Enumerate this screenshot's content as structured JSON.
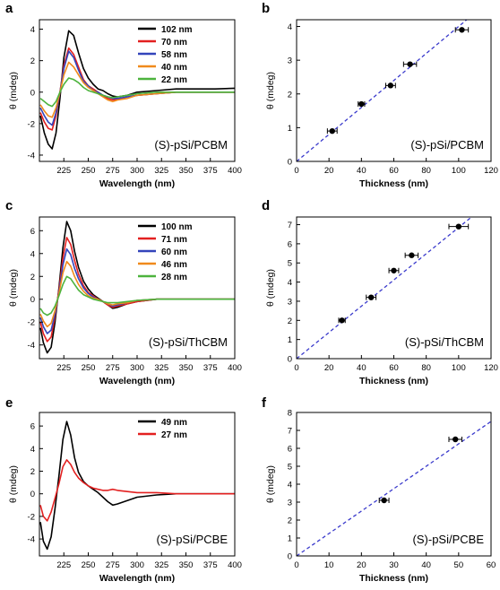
{
  "chart_data": [
    {
      "panel": "a",
      "type": "line",
      "annotation": "(S)-pSi/PCBM",
      "xlabel": "Wavelength (nm)",
      "ylabel": "θ (mdeg)",
      "xlim": [
        200,
        400
      ],
      "ylim": [
        -4.4,
        4.6
      ],
      "xticks": [
        225,
        250,
        275,
        300,
        325,
        350,
        375,
        400
      ],
      "yticks": [
        -4,
        -2,
        0,
        2,
        4
      ],
      "legend": "top-right",
      "series": [
        {
          "name": "102 nm",
          "color": "#000000",
          "x": [
            201,
            205,
            209,
            213,
            217,
            221,
            225,
            230,
            235,
            240,
            245,
            250,
            255,
            260,
            265,
            270,
            275,
            280,
            290,
            300,
            320,
            340,
            360,
            380,
            400
          ],
          "y": [
            -1.5,
            -2.6,
            -3.3,
            -3.6,
            -2.6,
            -0.4,
            2.2,
            3.9,
            3.6,
            2.5,
            1.5,
            0.9,
            0.5,
            0.2,
            0.1,
            -0.1,
            -0.25,
            -0.3,
            -0.2,
            0.0,
            0.1,
            0.2,
            0.2,
            0.2,
            0.25
          ]
        },
        {
          "name": "70 nm",
          "color": "#e32020",
          "x": [
            201,
            205,
            209,
            213,
            217,
            221,
            225,
            230,
            235,
            240,
            245,
            250,
            255,
            260,
            265,
            270,
            275,
            280,
            290,
            300,
            320,
            340,
            360,
            380,
            400
          ],
          "y": [
            -1.3,
            -1.9,
            -2.3,
            -2.4,
            -1.5,
            0.0,
            1.7,
            2.8,
            2.4,
            1.6,
            0.8,
            0.4,
            0.2,
            0.0,
            -0.2,
            -0.4,
            -0.5,
            -0.45,
            -0.3,
            -0.2,
            -0.1,
            0.0,
            0.0,
            0.0,
            0.0
          ]
        },
        {
          "name": "58 nm",
          "color": "#3344bb",
          "x": [
            201,
            205,
            209,
            213,
            217,
            221,
            225,
            230,
            235,
            240,
            245,
            250,
            255,
            260,
            265,
            270,
            275,
            280,
            290,
            300,
            320,
            340,
            360,
            380,
            400
          ],
          "y": [
            -1.0,
            -1.5,
            -1.9,
            -2.1,
            -1.3,
            0.0,
            1.5,
            2.6,
            2.2,
            1.4,
            0.7,
            0.4,
            0.1,
            0.0,
            -0.2,
            -0.3,
            -0.4,
            -0.4,
            -0.3,
            -0.2,
            -0.1,
            0.0,
            0.0,
            0.0,
            0.0
          ]
        },
        {
          "name": "40 nm",
          "color": "#f08a1c",
          "x": [
            201,
            205,
            209,
            213,
            217,
            221,
            225,
            230,
            235,
            240,
            245,
            250,
            255,
            260,
            265,
            270,
            275,
            280,
            290,
            300,
            320,
            340,
            360,
            380,
            400
          ],
          "y": [
            -0.8,
            -1.2,
            -1.5,
            -1.6,
            -1.0,
            0.0,
            1.1,
            1.9,
            1.6,
            1.1,
            0.6,
            0.3,
            0.1,
            -0.1,
            -0.3,
            -0.5,
            -0.6,
            -0.5,
            -0.4,
            -0.2,
            -0.1,
            0.0,
            0.0,
            0.0,
            0.0
          ]
        },
        {
          "name": "22 nm",
          "color": "#4db33d",
          "x": [
            201,
            205,
            209,
            213,
            217,
            221,
            225,
            230,
            235,
            240,
            245,
            250,
            255,
            260,
            265,
            270,
            275,
            280,
            290,
            300,
            320,
            340,
            360,
            380,
            400
          ],
          "y": [
            -0.4,
            -0.6,
            -0.8,
            -0.9,
            -0.6,
            0.0,
            0.5,
            0.9,
            0.8,
            0.6,
            0.3,
            0.1,
            0.0,
            -0.1,
            -0.2,
            -0.3,
            -0.35,
            -0.3,
            -0.2,
            -0.1,
            0.0,
            0.0,
            0.0,
            0.0,
            0.0
          ]
        }
      ]
    },
    {
      "panel": "b",
      "type": "scatter",
      "annotation": "(S)-pSi/PCBM",
      "xlabel": "Thickness (nm)",
      "ylabel": "θ (mdeg)",
      "xlim": [
        0,
        120
      ],
      "ylim": [
        0,
        4.2
      ],
      "xticks": [
        0,
        20,
        40,
        60,
        80,
        100,
        120
      ],
      "yticks": [
        0,
        1,
        2,
        3,
        4
      ],
      "points": [
        {
          "x": 22,
          "y": 0.9,
          "xerr": 3
        },
        {
          "x": 40,
          "y": 1.7,
          "xerr": 2
        },
        {
          "x": 58,
          "y": 2.25,
          "xerr": 3
        },
        {
          "x": 70,
          "y": 2.88,
          "xerr": 4
        },
        {
          "x": 102,
          "y": 3.9,
          "xerr": 4
        }
      ],
      "fit_line": {
        "x": [
          0,
          105
        ],
        "y": [
          0,
          4.2
        ]
      }
    },
    {
      "panel": "c",
      "type": "line",
      "annotation": "(S)-pSi/ThCBM",
      "xlabel": "Wavelength (nm)",
      "ylabel": "θ (mdeg)",
      "xlim": [
        200,
        400
      ],
      "ylim": [
        -5.2,
        7.2
      ],
      "xticks": [
        225,
        250,
        275,
        300,
        325,
        350,
        375,
        400
      ],
      "yticks": [
        -4,
        -2,
        0,
        2,
        4,
        6
      ],
      "legend": "top-right",
      "series": [
        {
          "name": "100 nm",
          "color": "#000000",
          "x": [
            201,
            204,
            208,
            212,
            216,
            220,
            224,
            228,
            232,
            236,
            240,
            245,
            250,
            255,
            260,
            265,
            270,
            275,
            280,
            290,
            300,
            320,
            340,
            360,
            380,
            400
          ],
          "y": [
            -2.5,
            -3.8,
            -4.7,
            -4.2,
            -2.0,
            1.0,
            4.5,
            6.8,
            6.0,
            4.2,
            2.8,
            1.6,
            0.9,
            0.4,
            0.1,
            -0.2,
            -0.5,
            -0.8,
            -0.7,
            -0.4,
            -0.2,
            0.0,
            0.0,
            0.0,
            0.0,
            0.0
          ]
        },
        {
          "name": "71 nm",
          "color": "#e32020",
          "x": [
            201,
            204,
            208,
            212,
            216,
            220,
            224,
            228,
            232,
            236,
            240,
            245,
            250,
            255,
            260,
            265,
            270,
            275,
            280,
            290,
            300,
            320,
            340,
            360,
            380,
            400
          ],
          "y": [
            -2.0,
            -3.0,
            -3.7,
            -3.3,
            -1.5,
            0.8,
            3.6,
            5.4,
            4.8,
            3.4,
            2.2,
            1.2,
            0.6,
            0.3,
            0.0,
            -0.2,
            -0.5,
            -0.7,
            -0.6,
            -0.4,
            -0.2,
            0.0,
            0.0,
            0.0,
            0.0,
            0.0
          ]
        },
        {
          "name": "60 nm",
          "color": "#3344bb",
          "x": [
            201,
            204,
            208,
            212,
            216,
            220,
            224,
            228,
            232,
            236,
            240,
            245,
            250,
            255,
            260,
            265,
            270,
            275,
            280,
            290,
            300,
            320,
            340,
            360,
            380,
            400
          ],
          "y": [
            -1.6,
            -2.4,
            -3.0,
            -2.7,
            -1.3,
            0.6,
            3.0,
            4.4,
            3.9,
            2.7,
            1.8,
            1.0,
            0.5,
            0.2,
            0.0,
            -0.2,
            -0.4,
            -0.6,
            -0.5,
            -0.3,
            -0.1,
            0.0,
            0.0,
            0.0,
            0.0,
            0.0
          ]
        },
        {
          "name": "46 nm",
          "color": "#f08a1c",
          "x": [
            201,
            204,
            208,
            212,
            216,
            220,
            224,
            228,
            232,
            236,
            240,
            245,
            250,
            255,
            260,
            265,
            270,
            275,
            280,
            290,
            300,
            320,
            340,
            360,
            380,
            400
          ],
          "y": [
            -1.3,
            -1.9,
            -2.4,
            -2.1,
            -1.0,
            0.5,
            2.3,
            3.3,
            2.9,
            2.0,
            1.3,
            0.7,
            0.3,
            0.1,
            0.0,
            -0.2,
            -0.4,
            -0.5,
            -0.4,
            -0.3,
            -0.1,
            0.0,
            0.0,
            0.0,
            0.0,
            0.0
          ]
        },
        {
          "name": "28 nm",
          "color": "#4db33d",
          "x": [
            201,
            204,
            208,
            212,
            216,
            220,
            224,
            228,
            232,
            236,
            240,
            245,
            250,
            255,
            260,
            265,
            270,
            275,
            280,
            290,
            300,
            320,
            340,
            360,
            380,
            400
          ],
          "y": [
            -0.8,
            -1.2,
            -1.4,
            -1.2,
            -0.6,
            0.3,
            1.3,
            2.0,
            1.8,
            1.3,
            0.8,
            0.4,
            0.2,
            0.0,
            -0.1,
            -0.2,
            -0.3,
            -0.3,
            -0.3,
            -0.2,
            -0.1,
            0.0,
            0.0,
            0.0,
            0.0,
            0.0
          ]
        }
      ]
    },
    {
      "panel": "d",
      "type": "scatter",
      "annotation": "(S)-pSi/ThCBM",
      "xlabel": "Thickness (nm)",
      "ylabel": "θ (mdeg)",
      "xlim": [
        0,
        120
      ],
      "ylim": [
        0,
        7.4
      ],
      "xticks": [
        0,
        20,
        40,
        60,
        80,
        100,
        120
      ],
      "yticks": [
        0,
        1,
        2,
        3,
        4,
        5,
        6,
        7
      ],
      "points": [
        {
          "x": 28,
          "y": 2.0,
          "xerr": 2
        },
        {
          "x": 46,
          "y": 3.2,
          "xerr": 3
        },
        {
          "x": 60,
          "y": 4.6,
          "xerr": 3
        },
        {
          "x": 71,
          "y": 5.4,
          "xerr": 4
        },
        {
          "x": 100,
          "y": 6.9,
          "xerr": 6
        }
      ],
      "fit_line": {
        "x": [
          0,
          108
        ],
        "y": [
          0,
          7.4
        ]
      }
    },
    {
      "panel": "e",
      "type": "line",
      "annotation": "(S)-pSi/PCBE",
      "xlabel": "Wavelength (nm)",
      "ylabel": "θ (mdeg)",
      "xlim": [
        200,
        400
      ],
      "ylim": [
        -5.5,
        7.2
      ],
      "xticks": [
        225,
        250,
        275,
        300,
        325,
        350,
        375,
        400
      ],
      "yticks": [
        -4,
        -2,
        0,
        2,
        4,
        6
      ],
      "legend": "top-right",
      "series": [
        {
          "name": "49 nm",
          "color": "#000000",
          "x": [
            201,
            204,
            208,
            212,
            216,
            220,
            224,
            228,
            232,
            236,
            240,
            245,
            250,
            255,
            260,
            265,
            270,
            275,
            280,
            290,
            300,
            320,
            340,
            360,
            380,
            400
          ],
          "y": [
            -2.5,
            -4.2,
            -4.9,
            -3.8,
            -1.3,
            1.6,
            4.8,
            6.4,
            5.2,
            3.2,
            1.9,
            1.1,
            0.7,
            0.4,
            0.1,
            -0.3,
            -0.7,
            -1.0,
            -0.9,
            -0.6,
            -0.3,
            -0.1,
            0.0,
            0.0,
            0.0,
            0.0
          ]
        },
        {
          "name": "27 nm",
          "color": "#e32020",
          "x": [
            201,
            204,
            208,
            212,
            216,
            220,
            224,
            228,
            232,
            236,
            240,
            245,
            250,
            255,
            260,
            265,
            270,
            275,
            280,
            290,
            300,
            320,
            340,
            360,
            380,
            400
          ],
          "y": [
            -1.0,
            -2.0,
            -2.4,
            -1.6,
            -0.4,
            0.9,
            2.4,
            3.0,
            2.6,
            1.9,
            1.4,
            1.0,
            0.7,
            0.5,
            0.4,
            0.3,
            0.3,
            0.4,
            0.3,
            0.2,
            0.1,
            0.1,
            0.0,
            0.0,
            0.0,
            0.0
          ]
        }
      ]
    },
    {
      "panel": "f",
      "type": "scatter",
      "annotation": "(S)-pSi/PCBE",
      "xlabel": "Thickness (nm)",
      "ylabel": "θ (mdeg)",
      "xlim": [
        0,
        60
      ],
      "ylim": [
        0,
        8
      ],
      "xticks": [
        0,
        10,
        20,
        30,
        40,
        50,
        60
      ],
      "yticks": [
        0,
        1,
        2,
        3,
        4,
        5,
        6,
        7,
        8
      ],
      "points": [
        {
          "x": 27,
          "y": 3.1,
          "xerr": 1.5
        },
        {
          "x": 49,
          "y": 6.5,
          "xerr": 2
        }
      ],
      "fit_line": {
        "x": [
          0,
          60
        ],
        "y": [
          0,
          7.5
        ]
      }
    }
  ],
  "panel_letters": [
    "a",
    "b",
    "c",
    "d",
    "e",
    "f"
  ],
  "fit_line_color": "#3a3acc"
}
